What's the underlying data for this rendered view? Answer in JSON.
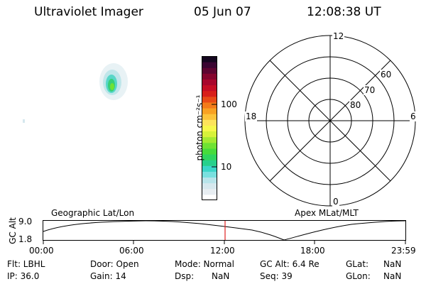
{
  "header": {
    "instrument": "Ultraviolet Imager",
    "date": "05 Jun 07",
    "time": "12:08:38 UT"
  },
  "colorbar": {
    "unit_label": "photon cm⁻²s⁻¹",
    "tick_labels": [
      "100",
      "10"
    ],
    "colors": [
      "#ffffff",
      "#e8eef2",
      "#d6e8ee",
      "#b8e4ea",
      "#79e0df",
      "#3bd6c9",
      "#27d08c",
      "#2fd55e",
      "#47db3b",
      "#6fe233",
      "#a4ea32",
      "#d7f23a",
      "#f6f84b",
      "#fde35a",
      "#fcc33a",
      "#f8a123",
      "#f37b19",
      "#e84a16",
      "#d81f1a",
      "#c50d24",
      "#a8062c",
      "#85042e",
      "#5d0431",
      "#3a0532",
      "#14061f"
    ]
  },
  "polar": {
    "mlt_labels": {
      "top": "12",
      "left": "18",
      "right": "6",
      "bottom": "0"
    },
    "lat_labels": [
      "60",
      "70",
      "80"
    ]
  },
  "timeline": {
    "top_left_label": "Geographic Lat/Lon",
    "top_right_label": "Apex  MLat/MLT",
    "y_title": "GC Alt",
    "y_ticks": [
      "9.0",
      "1.8"
    ],
    "x_ticks": [
      "00:00",
      "06:00",
      "12:00",
      "18:00",
      "23:59"
    ],
    "current_time_color": "#e02020"
  },
  "info": {
    "row1": {
      "filter": "Flt: LBHL",
      "door": "Door: Open",
      "mode": "Mode:  Normal",
      "gc_alt": "GC Alt:  6.4 Re",
      "glat_label": "GLat:",
      "glat_val": "NaN"
    },
    "row2": {
      "ip": "IP: 36.0",
      "gain": "Gain:  14",
      "dsp_label": "Dsp:",
      "dsp_val": "NaN",
      "seq": "Seq:  39",
      "glon_label": "GLon:",
      "glon_val": "NaN"
    }
  }
}
